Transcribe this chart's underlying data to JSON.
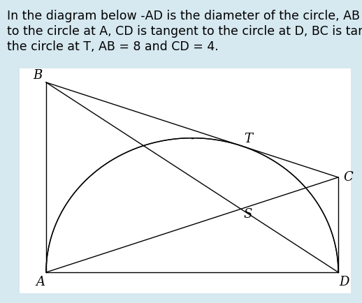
{
  "AB": 8,
  "CD": 4,
  "bg_color": "#d6e8f0",
  "diagram_bg": "#ffffff",
  "line_color": "#000000",
  "title_lines": [
    "In the diagram below ­AD is the diameter of the circle, AB is tangent",
    "to the circle at A, CD is tangent to the circle at D, BC is tangent to",
    "the circle at T, AB = 8 and CD = 4."
  ],
  "font_size_title": 12.5,
  "label_fontsize": 13
}
